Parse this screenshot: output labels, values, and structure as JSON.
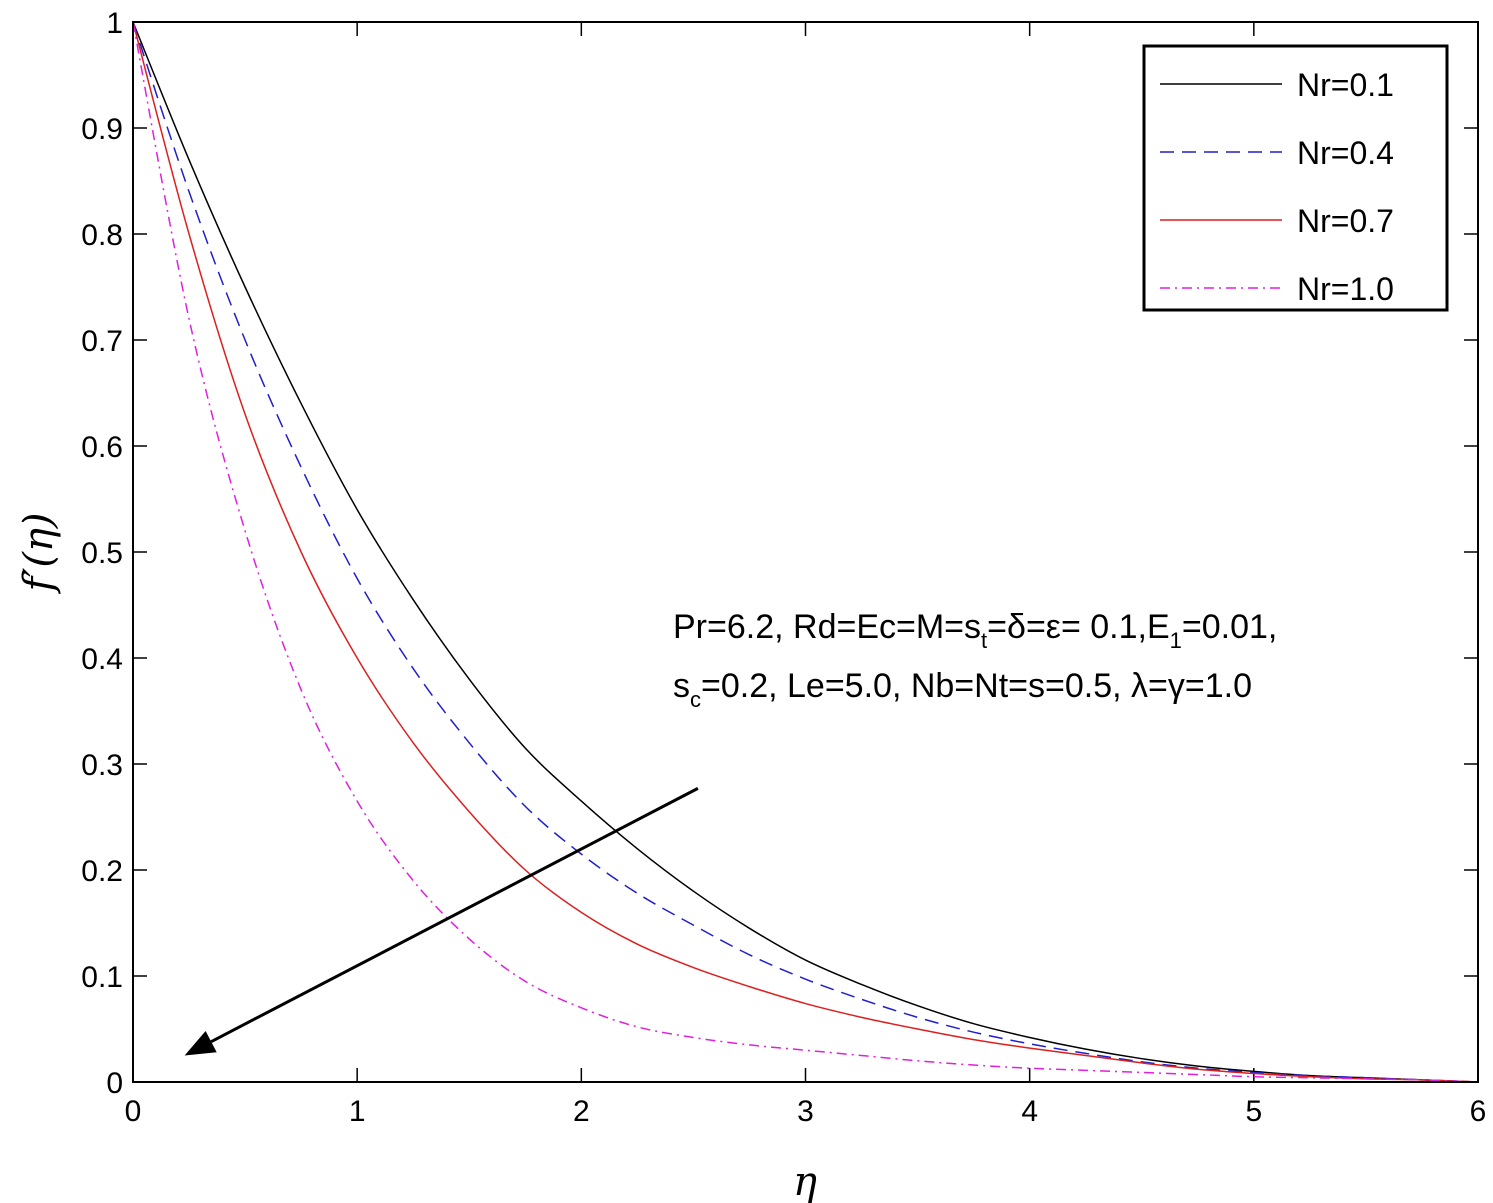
{
  "chart_data": {
    "type": "line",
    "xlabel": "η",
    "ylabel": "f′(η)",
    "xlim": [
      0,
      6
    ],
    "ylim": [
      0,
      1
    ],
    "xticks": [
      "0",
      "1",
      "2",
      "3",
      "4",
      "5",
      "6"
    ],
    "yticks": [
      "0",
      "0.1",
      "0.2",
      "0.3",
      "0.4",
      "0.5",
      "0.6",
      "0.7",
      "0.8",
      "0.9",
      "1"
    ],
    "grid": false,
    "legend_position": "top-right",
    "x": [
      0,
      0.25,
      0.5,
      0.75,
      1.0,
      1.25,
      1.5,
      1.75,
      2.0,
      2.25,
      2.5,
      2.75,
      3.0,
      3.25,
      3.5,
      3.75,
      4.0,
      4.25,
      4.5,
      4.75,
      5.0,
      5.25,
      5.5,
      5.75,
      6.0
    ],
    "series": [
      {
        "name": "Nr=0.1",
        "color": "#000000",
        "dash": "solid",
        "values": [
          1.0,
          0.87,
          0.75,
          0.64,
          0.54,
          0.455,
          0.38,
          0.315,
          0.265,
          0.22,
          0.18,
          0.145,
          0.115,
          0.092,
          0.072,
          0.055,
          0.042,
          0.031,
          0.022,
          0.015,
          0.01,
          0.006,
          0.004,
          0.002,
          0.0
        ]
      },
      {
        "name": "Nr=0.4",
        "color": "#1f1fcc",
        "dash": "dashed",
        "values": [
          1.0,
          0.84,
          0.7,
          0.58,
          0.475,
          0.39,
          0.32,
          0.26,
          0.215,
          0.178,
          0.148,
          0.12,
          0.097,
          0.078,
          0.061,
          0.047,
          0.036,
          0.027,
          0.019,
          0.013,
          0.009,
          0.006,
          0.004,
          0.002,
          0.0
        ]
      },
      {
        "name": "Nr=0.7",
        "color": "#dd1f1f",
        "dash": "solid",
        "values": [
          1.0,
          0.8,
          0.63,
          0.5,
          0.4,
          0.32,
          0.255,
          0.2,
          0.16,
          0.13,
          0.108,
          0.09,
          0.074,
          0.061,
          0.05,
          0.04,
          0.032,
          0.025,
          0.018,
          0.012,
          0.008,
          0.005,
          0.003,
          0.002,
          0.0
        ]
      },
      {
        "name": "Nr=1.0",
        "color": "#e020e0",
        "dash": "dashdot",
        "values": [
          1.0,
          0.72,
          0.52,
          0.37,
          0.265,
          0.19,
          0.135,
          0.095,
          0.07,
          0.052,
          0.042,
          0.035,
          0.03,
          0.025,
          0.02,
          0.016,
          0.013,
          0.011,
          0.009,
          0.007,
          0.005,
          0.004,
          0.003,
          0.002,
          0.0
        ]
      }
    ],
    "annotation": {
      "line1": {
        "a": "Pr=6.2, Rd=Ec=M=s",
        "sub1": "t",
        "b": "=δ=ε= 0.1,E",
        "sub2": "1",
        "c": "=0.01,"
      },
      "line2": {
        "a": "s",
        "sub1": "c",
        "b": "=0.2, Le=5.0, Nb=Nt=s=0.5, λ=γ=1.0"
      }
    },
    "arrow": {
      "from": [
        2.52,
        0.277
      ],
      "to": [
        0.23,
        0.025
      ],
      "meaning": "increasing Nr"
    }
  }
}
